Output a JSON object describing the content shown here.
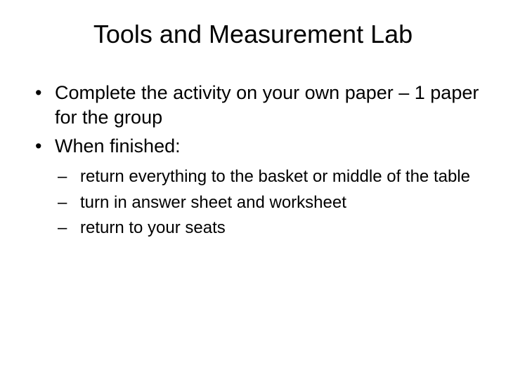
{
  "slide": {
    "title": "Tools and Measurement Lab",
    "title_fontsize": 36,
    "title_align": "center",
    "background_color": "#ffffff",
    "text_color": "#000000",
    "main_bullets": [
      "Complete the activity on your own paper – 1 paper for the group",
      "When finished:"
    ],
    "main_bullet_fontsize": 27,
    "sub_bullets": [
      "return everything to the basket or middle of the table",
      "turn in answer sheet and worksheet",
      "return to your seats"
    ],
    "sub_bullet_fontsize": 24,
    "font_family": "Arial"
  }
}
